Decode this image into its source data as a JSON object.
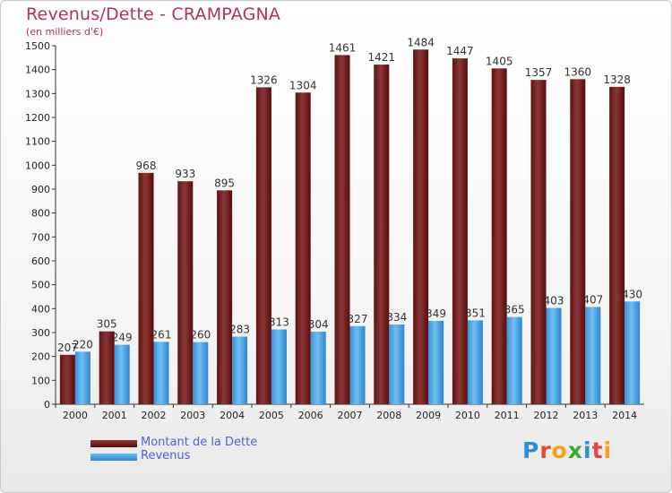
{
  "title": "Revenus/Dette - CRAMPAGNA",
  "subtitle": "(en milliers d'€)",
  "legend": {
    "debt_label": "Montant de la Dette",
    "revenue_label": "Revenus"
  },
  "logo": {
    "text": "Proxiti",
    "letters": [
      {
        "ch": "P",
        "color": "#2e8fd6"
      },
      {
        "ch": "r",
        "color": "#e24b3b"
      },
      {
        "ch": "o",
        "color": "#f4a11c"
      },
      {
        "ch": "x",
        "color": "#3aaa35"
      },
      {
        "ch": "i",
        "color": "#2e8fd6"
      },
      {
        "ch": "t",
        "color": "#e24b3b"
      },
      {
        "ch": "i",
        "color": "#f4a11c"
      }
    ]
  },
  "colors": {
    "debt_top": "#8c3a3a",
    "debt_bottom": "#5a0b0b",
    "revenue_top": "#66b9f0",
    "revenue_bottom": "#2f86d1",
    "title": "#b0306a",
    "legend_text": "#4f5fd8"
  },
  "chart_data": {
    "type": "bar",
    "categories": [
      "2000",
      "2001",
      "2002",
      "2003",
      "2004",
      "2005",
      "2006",
      "2007",
      "2008",
      "2009",
      "2010",
      "2011",
      "2012",
      "2013",
      "2014"
    ],
    "series": [
      {
        "name": "Montant de la Dette",
        "values": [
          207,
          305,
          968,
          933,
          895,
          1326,
          1304,
          1461,
          1421,
          1484,
          1447,
          1405,
          1357,
          1360,
          1328
        ]
      },
      {
        "name": "Revenus",
        "values": [
          220,
          249,
          261,
          260,
          283,
          313,
          304,
          327,
          334,
          349,
          351,
          365,
          403,
          407,
          430
        ]
      }
    ],
    "ylim": [
      0,
      1500
    ],
    "yticks": [
      0,
      100,
      200,
      300,
      400,
      500,
      600,
      700,
      800,
      900,
      1000,
      1100,
      1200,
      1300,
      1400,
      1500
    ],
    "grid": false,
    "legend_position": "bottom-left"
  }
}
